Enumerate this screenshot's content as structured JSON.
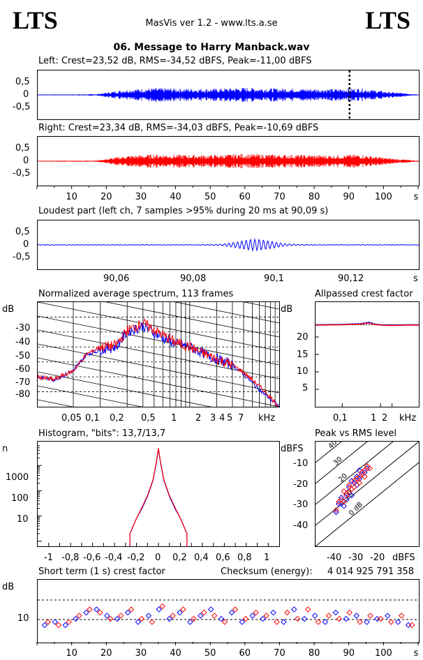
{
  "header": {
    "logo_left": "LTS",
    "logo_right": "LTS",
    "app_title": "MasVis ver 1.2 - www.lts.a.se",
    "file_name": "06. Message to Harry Manback.wav"
  },
  "left": {
    "title": "Left: Crest=23,52 dB, RMS=-34,52 dBFS, Peak=-11,00 dBFS",
    "color": "#0000ff",
    "yticks": [
      "0,5",
      "0",
      "-0,5"
    ],
    "marker_s": 90
  },
  "right": {
    "title": "Right: Crest=23,34 dB, RMS=-34,03 dBFS, Peak=-10,69 dBFS",
    "color": "#ff0000",
    "yticks": [
      "0,5",
      "0",
      "-0,5"
    ]
  },
  "time_axis": {
    "ticks": [
      "10",
      "20",
      "30",
      "40",
      "50",
      "60",
      "70",
      "80",
      "90",
      "100"
    ],
    "unit": "s",
    "range": [
      0,
      110
    ]
  },
  "loudest": {
    "title": "Loudest part (left  ch, 7 samples >95% during 20 ms at 90,09 s)",
    "yticks": [
      "0,5",
      "0",
      "-0,5"
    ],
    "xticks": [
      "90,06",
      "90,08",
      "90,1",
      "90,12"
    ],
    "unit": "s",
    "xrange": [
      90.04,
      90.138
    ]
  },
  "spectrum": {
    "title": "Normalized average spectrum, 113 frames",
    "ylabel": "dB",
    "yticks": [
      "-30",
      "-40",
      "-50",
      "-60",
      "-70",
      "-80"
    ],
    "xticks": [
      "0,05",
      "0,1",
      "0,2",
      "0,5",
      "1",
      "2",
      "3",
      "4",
      "5",
      "7"
    ],
    "unit": "kHz"
  },
  "crest_allpass": {
    "title": "Allpassed crest factor",
    "ylabel": "dB",
    "yticks": [
      "20",
      "15",
      "10",
      "5"
    ],
    "xticks": [
      "0,1",
      "1",
      "2"
    ],
    "unit": "kHz",
    "level_db": 23.5
  },
  "histogram": {
    "title": "Histogram, \"bits\": 13,7/13,7",
    "ylabel": "n",
    "yticks": [
      "1000",
      "100",
      "10"
    ],
    "xticks": [
      "-1",
      "-0,8",
      "-0,6",
      "-0,4",
      "-0,2",
      "0",
      "0,2",
      "0,4",
      "0,6",
      "0,8",
      "1"
    ]
  },
  "peak_rms": {
    "title": "Peak vs RMS level",
    "ylabel": "dBFS",
    "yticks": [
      "-10",
      "-20",
      "-30",
      "-40"
    ],
    "xticks": [
      "-40",
      "-30",
      "-20"
    ],
    "xunit": "dBFS",
    "line_labels": [
      "40",
      "30",
      "20",
      "10",
      "0 dB"
    ]
  },
  "short_crest": {
    "title": "Short term (1 s) crest factor",
    "checksum_label": "Checksum (energy):",
    "checksum_value": "4 014 925 791 358",
    "ylabel": "dB",
    "yticks": [
      "10"
    ],
    "xticks": [
      "10",
      "20",
      "30",
      "40",
      "50",
      "60",
      "70",
      "80",
      "90",
      "100"
    ],
    "unit": "s"
  },
  "chart_data": [
    {
      "type": "line",
      "title": "Left: Crest=23,52 dB, RMS=-34,52 dBFS, Peak=-11,00 dBFS",
      "xlabel": "s",
      "x_range": [
        0,
        110
      ],
      "ylim": [
        -1,
        1
      ],
      "series": [
        {
          "name": "Left",
          "color": "#0000ff",
          "envelope_peak": [
            0.02,
            0.02,
            0.03,
            0.22,
            0.28,
            0.26,
            0.25,
            0.3,
            0.27,
            0.26,
            0.24,
            0.27,
            0.12,
            0.02
          ]
        }
      ]
    },
    {
      "type": "line",
      "title": "Right: Crest=23,34 dB, RMS=-34,03 dBFS, Peak=-10,69 dBFS",
      "xlabel": "s",
      "x_range": [
        0,
        110
      ],
      "ylim": [
        -1,
        1
      ],
      "series": [
        {
          "name": "Right",
          "color": "#ff0000",
          "envelope_peak": [
            0.02,
            0.02,
            0.03,
            0.22,
            0.28,
            0.26,
            0.25,
            0.3,
            0.27,
            0.26,
            0.24,
            0.27,
            0.12,
            0.02
          ]
        }
      ]
    },
    {
      "type": "line",
      "title": "Loudest part (left  ch, 7 samples >95% during 20 ms at 90,09 s)",
      "xlabel": "s",
      "x_range": [
        90.04,
        90.138
      ],
      "ylim": [
        -1,
        1
      ],
      "burst_center_s": 90.096,
      "burst_peak": 0.22
    },
    {
      "type": "line",
      "title": "Normalized average spectrum, 113 frames",
      "xlabel": "kHz",
      "ylabel": "dB",
      "ylim": [
        -90,
        -20
      ],
      "x": [
        0.02,
        0.03,
        0.05,
        0.07,
        0.1,
        0.15,
        0.2,
        0.3,
        0.5,
        0.7,
        1,
        1.5,
        2,
        3,
        4,
        5,
        7,
        10
      ],
      "series": [
        {
          "name": "L",
          "color": "#0000ff",
          "values": [
            -70,
            -72,
            -66,
            -55,
            -52,
            -50,
            -40,
            -36,
            -44,
            -48,
            -50,
            -55,
            -58,
            -62,
            -68,
            -74,
            -82,
            -90
          ]
        },
        {
          "name": "R",
          "color": "#ff0000",
          "values": [
            -70,
            -72,
            -66,
            -55,
            -50,
            -49,
            -39,
            -34,
            -42,
            -47,
            -50,
            -55,
            -58,
            -62,
            -67,
            -72,
            -80,
            -90
          ]
        }
      ]
    },
    {
      "type": "line",
      "title": "Allpassed crest factor",
      "xlabel": "kHz",
      "ylabel": "dB",
      "ylim": [
        0,
        30
      ],
      "x": [
        0.02,
        0.1,
        0.3,
        0.5,
        0.7,
        1,
        2,
        5,
        10
      ],
      "series": [
        {
          "name": "L",
          "color": "#0000ff",
          "values": [
            23.5,
            23.6,
            23.8,
            24.2,
            23.7,
            23.5,
            23.4,
            23.5,
            23.5
          ]
        },
        {
          "name": "R",
          "color": "#ff0000",
          "values": [
            23.4,
            23.5,
            23.7,
            24.0,
            23.6,
            23.4,
            23.3,
            23.4,
            23.4
          ]
        }
      ]
    },
    {
      "type": "line",
      "title": "Histogram, \"bits\": 13,7/13,7",
      "ylabel": "n",
      "log_y": true,
      "xlim": [
        -1.1,
        1.1
      ],
      "x": [
        -0.26,
        -0.2,
        -0.15,
        -0.1,
        -0.05,
        -0.02,
        0,
        0.02,
        0.05,
        0.1,
        0.15,
        0.2,
        0.26
      ],
      "series": [
        {
          "name": "L",
          "color": "#0000ff",
          "values": [
            2,
            8,
            20,
            60,
            250,
            1200,
            4500,
            1200,
            250,
            60,
            20,
            8,
            2
          ]
        },
        {
          "name": "R",
          "color": "#ff0000",
          "values": [
            2,
            8,
            22,
            65,
            270,
            1300,
            4800,
            1300,
            270,
            65,
            22,
            8,
            2
          ]
        }
      ]
    },
    {
      "type": "scatter",
      "title": "Peak vs RMS level",
      "xlabel": "dBFS",
      "ylabel": "dBFS",
      "xlim": [
        -50,
        -10
      ],
      "ylim": [
        -50,
        0
      ],
      "series": [
        {
          "name": "L",
          "color": "#0000ff",
          "points": [
            [
              -42,
              -34
            ],
            [
              -41,
              -30
            ],
            [
              -40,
              -27
            ],
            [
              -39,
              -31
            ],
            [
              -38,
              -25
            ],
            [
              -37,
              -22
            ],
            [
              -36,
              -26
            ],
            [
              -35,
              -20
            ],
            [
              -34,
              -21
            ],
            [
              -33,
              -18
            ],
            [
              -32,
              -16
            ],
            [
              -31,
              -15
            ],
            [
              -30,
              -13
            ],
            [
              -33,
              -14
            ],
            [
              -36,
              -19
            ],
            [
              -38,
              -28
            ],
            [
              -40,
              -30
            ],
            [
              -34,
              -17
            ]
          ]
        },
        {
          "name": "R",
          "color": "#ff0000",
          "points": [
            [
              -42,
              -33
            ],
            [
              -41,
              -29
            ],
            [
              -40,
              -28
            ],
            [
              -39,
              -24
            ],
            [
              -38,
              -26
            ],
            [
              -37,
              -21
            ],
            [
              -36,
              -23
            ],
            [
              -35,
              -19
            ],
            [
              -34,
              -18
            ],
            [
              -33,
              -17
            ],
            [
              -32,
              -15
            ],
            [
              -31,
              -14
            ],
            [
              -30,
              -12
            ],
            [
              -29,
              -13
            ],
            [
              -35,
              -22
            ],
            [
              -37,
              -24
            ],
            [
              -31,
              -17
            ],
            [
              -33,
              -20
            ],
            [
              -39,
              -29
            ]
          ]
        }
      ]
    },
    {
      "type": "scatter",
      "title": "Short term (1 s) crest factor",
      "xlabel": "s",
      "ylabel": "dB",
      "x_range": [
        0,
        110
      ],
      "ylim": [
        5,
        25
      ],
      "series": [
        {
          "name": "L",
          "color": "#0000ff",
          "points": [
            [
              2,
              11
            ],
            [
              5,
              12
            ],
            [
              8,
              11
            ],
            [
              11,
              13
            ],
            [
              14,
              15
            ],
            [
              17,
              16
            ],
            [
              20,
              14
            ],
            [
              23,
              13
            ],
            [
              26,
              15
            ],
            [
              29,
              12
            ],
            [
              32,
              14
            ],
            [
              35,
              16
            ],
            [
              38,
              13
            ],
            [
              41,
              15
            ],
            [
              44,
              12
            ],
            [
              47,
              14
            ],
            [
              50,
              16
            ],
            [
              53,
              13
            ],
            [
              56,
              15
            ],
            [
              59,
              12
            ],
            [
              62,
              14
            ],
            [
              65,
              13
            ],
            [
              68,
              15
            ],
            [
              71,
              12
            ],
            [
              74,
              16
            ],
            [
              77,
              13
            ],
            [
              80,
              14
            ],
            [
              83,
              12
            ],
            [
              86,
              15
            ],
            [
              89,
              13
            ],
            [
              92,
              14
            ],
            [
              95,
              12
            ],
            [
              98,
              13
            ],
            [
              101,
              14
            ],
            [
              104,
              12
            ],
            [
              107,
              11
            ]
          ]
        },
        {
          "name": "R",
          "color": "#ff0000",
          "points": [
            [
              3,
              12
            ],
            [
              6,
              11
            ],
            [
              9,
              12
            ],
            [
              12,
              14
            ],
            [
              15,
              16
            ],
            [
              18,
              15
            ],
            [
              21,
              13
            ],
            [
              24,
              14
            ],
            [
              27,
              16
            ],
            [
              30,
              13
            ],
            [
              33,
              12
            ],
            [
              36,
              17
            ],
            [
              39,
              14
            ],
            [
              42,
              16
            ],
            [
              45,
              13
            ],
            [
              48,
              15
            ],
            [
              51,
              14
            ],
            [
              54,
              12
            ],
            [
              57,
              16
            ],
            [
              60,
              13
            ],
            [
              63,
              15
            ],
            [
              66,
              14
            ],
            [
              69,
              12
            ],
            [
              72,
              15
            ],
            [
              75,
              13
            ],
            [
              78,
              16
            ],
            [
              81,
              12
            ],
            [
              84,
              14
            ],
            [
              87,
              13
            ],
            [
              90,
              15
            ],
            [
              93,
              12
            ],
            [
              96,
              14
            ],
            [
              99,
              13
            ],
            [
              102,
              12
            ],
            [
              105,
              14
            ],
            [
              108,
              11
            ]
          ]
        }
      ]
    }
  ]
}
